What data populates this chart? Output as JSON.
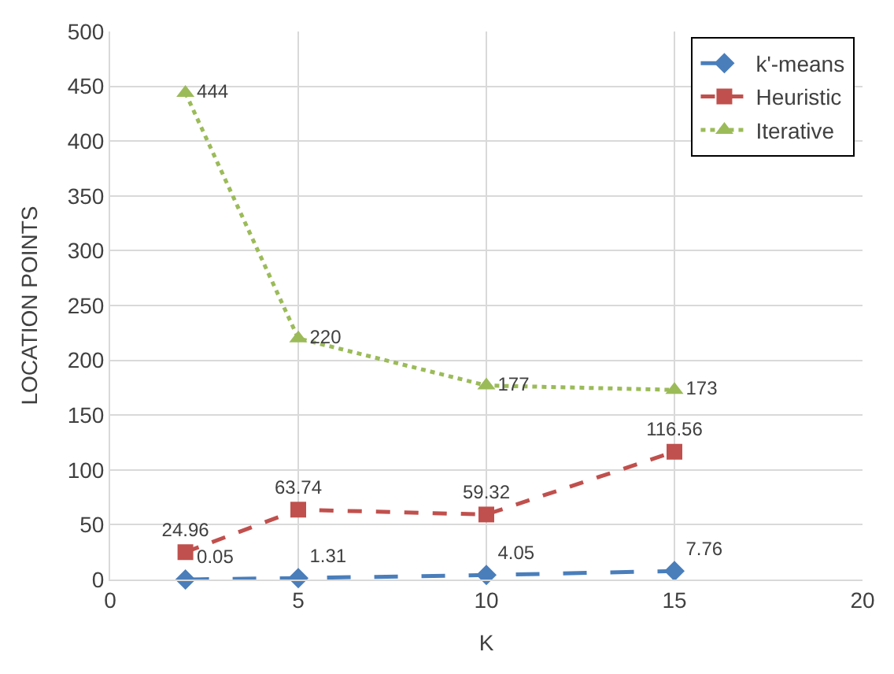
{
  "chart_data": {
    "type": "line",
    "xlabel": "K",
    "ylabel": "LOCATION POINTS",
    "x": [
      2,
      5,
      10,
      15
    ],
    "series": [
      {
        "name": "k'-means",
        "color": "#4a7ebb",
        "values": [
          0.05,
          1.31,
          4.05,
          7.76
        ],
        "marker": "diamond",
        "line_style": "longdash"
      },
      {
        "name": "Heuristic",
        "color": "#c0504d",
        "values": [
          24.96,
          63.74,
          59.32,
          116.56
        ],
        "marker": "square",
        "line_style": "dashed"
      },
      {
        "name": "Iterative",
        "color": "#9bbb59",
        "values": [
          444,
          220,
          177,
          173
        ],
        "marker": "triangle",
        "line_style": "dotted"
      }
    ],
    "xlim": [
      0,
      20
    ],
    "xticks": [
      0,
      5,
      10,
      15,
      20
    ],
    "ylim": [
      0,
      500
    ],
    "yticks": [
      0,
      50,
      100,
      150,
      200,
      250,
      300,
      350,
      400,
      450,
      500
    ],
    "grid": true,
    "legend": "top right",
    "data_labels": true
  }
}
